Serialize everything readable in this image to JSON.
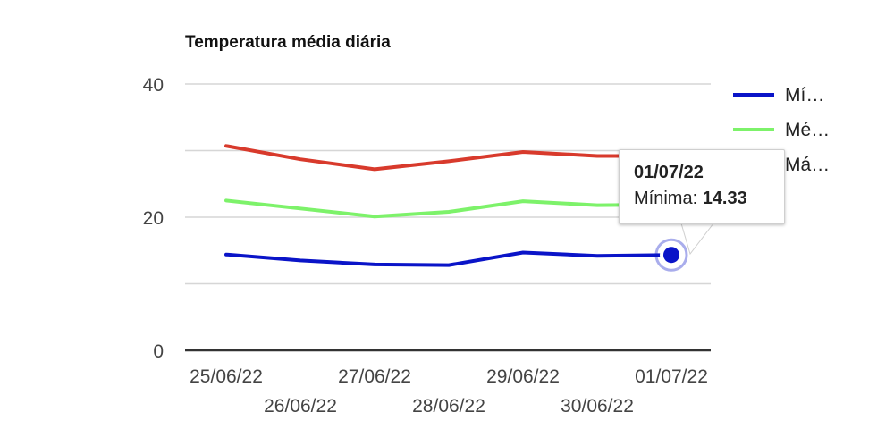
{
  "chart_data": {
    "type": "line",
    "title": "Temperatura média diária",
    "categories": [
      "25/06/22",
      "26/06/22",
      "27/06/22",
      "28/06/22",
      "29/06/22",
      "30/06/22",
      "01/07/22"
    ],
    "y_ticks": [
      "0",
      "20",
      "40"
    ],
    "ylim": [
      0,
      40
    ],
    "grid": true,
    "legend_placement": "right",
    "series": [
      {
        "name": "Mí…",
        "color": "#0a14c8",
        "values": [
          14.4,
          13.5,
          12.9,
          12.8,
          14.7,
          14.2,
          14.33
        ]
      },
      {
        "name": "Mé…",
        "color": "#7df26a",
        "values": [
          22.5,
          21.3,
          20.1,
          20.8,
          22.4,
          21.8,
          21.9
        ]
      },
      {
        "name": "Má…",
        "color": "#d83a2c",
        "values": [
          30.7,
          28.7,
          27.2,
          28.4,
          29.8,
          29.2,
          29.2
        ]
      }
    ],
    "tooltip": {
      "category": "01/07/22",
      "label": "Mínima:",
      "value": "14.33"
    }
  }
}
